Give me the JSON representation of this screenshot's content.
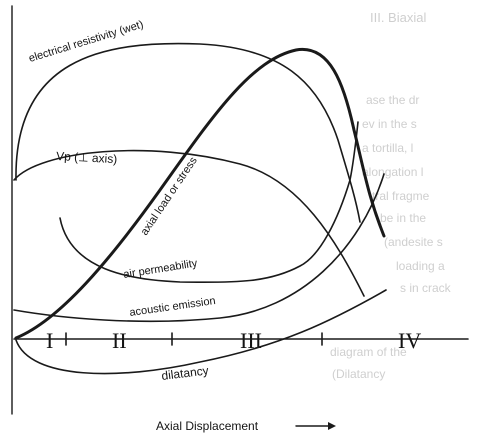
{
  "curves": {
    "electrical_resistivity": "electrical resistivity (wet)",
    "vp": "Vp (⊥ axis)",
    "axial_load": "axial load or stress",
    "air_permeability": "air permeability",
    "acoustic_emission": "acoustic emission",
    "dilatancy": "dilatancy"
  },
  "stages": [
    "I",
    "II",
    "III",
    "IV"
  ],
  "x_axis_label": "Axial Displacement",
  "background_text": {
    "heading": "III. Biaxial",
    "lines": [
      "ase the dr",
      "ev in the s",
      "a tortilla, l",
      "alongation l",
      "tral fragme",
      "be in the",
      "(andesite s",
      "loading a",
      "s in crack",
      "diagram of the",
      "(Dilatancy"
    ]
  }
}
